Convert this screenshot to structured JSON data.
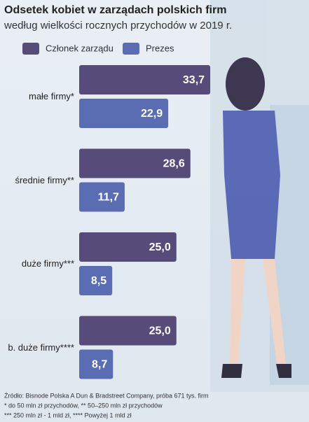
{
  "chart_data": {
    "type": "bar",
    "orientation": "horizontal",
    "title": "Odsetek kobiet w zarządach polskich firm",
    "subtitle": "według wielkości rocznych przychodów w 2019 r.",
    "categories": [
      "małe firmy*",
      "średnie firmy**",
      "duże firmy***",
      "b. duże firmy****"
    ],
    "series": [
      {
        "name": "Członek zarządu",
        "color": "#574b7a",
        "values": [
          33.7,
          28.6,
          25.0,
          25.0
        ],
        "value_labels": [
          "33,7",
          "28,6",
          "25,0",
          "25,0"
        ]
      },
      {
        "name": "Prezes",
        "color": "#5a6db3",
        "values": [
          22.9,
          11.7,
          8.5,
          8.7
        ],
        "value_labels": [
          "22,9",
          "11,7",
          "8,5",
          "8,7"
        ]
      }
    ],
    "notes": [
      "Źródło: Bisnode Polska A Dun & Bradstreet Company, próba 671 tys. firm",
      "* do 50 mln zł przychodów, ** 50–250 mln zł przychodów",
      "*** 250 mln zł - 1 mld zł, **** Powyżej 1 mld zł"
    ]
  }
}
